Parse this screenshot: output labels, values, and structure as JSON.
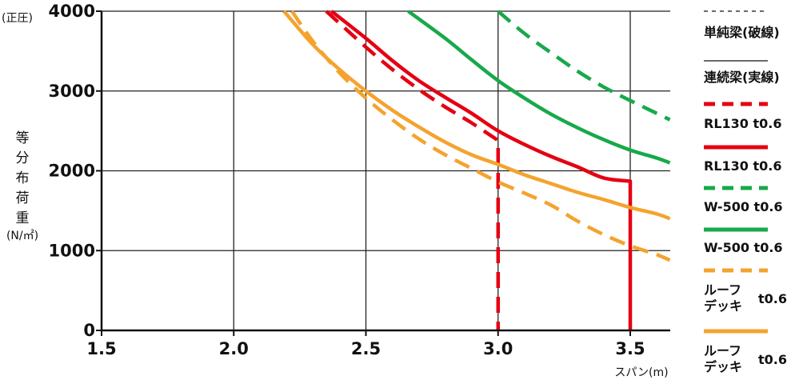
{
  "chart_data": {
    "type": "line",
    "xlabel": "スパン(m)",
    "ylabel_chars": [
      "等",
      "分",
      "布",
      "荷",
      "重"
    ],
    "yunit": "(N/㎡)",
    "ytop_note": "(正圧)",
    "xlim": [
      1.5,
      3.65
    ],
    "ylim": [
      0,
      4000
    ],
    "xticks": [
      1.5,
      2.0,
      2.5,
      3.0,
      3.5
    ],
    "xtick_labels": [
      "1.5",
      "2.0",
      "2.5",
      "3.0",
      "3.5"
    ],
    "yticks": [
      0,
      1000,
      2000,
      3000,
      4000
    ],
    "ytick_labels": [
      "0",
      "1000",
      "2000",
      "3000",
      "4000"
    ],
    "grid": true,
    "legend_placement": "right",
    "colors": {
      "red": "#e50012",
      "green": "#17a94a",
      "orange": "#f4a32f",
      "grid": "#222222"
    },
    "series": [
      {
        "id": "rl130-simple",
        "color": "#e50012",
        "dashed": true,
        "x": [
          2.35,
          2.5,
          2.6,
          2.7,
          2.8,
          2.9,
          3.0,
          3.0
        ],
        "y": [
          4000,
          3550,
          3270,
          3020,
          2800,
          2600,
          2380,
          0
        ]
      },
      {
        "id": "rl130-continuous",
        "color": "#e50012",
        "dashed": false,
        "x": [
          2.37,
          2.5,
          2.6,
          2.7,
          2.8,
          2.9,
          3.0,
          3.1,
          3.2,
          3.3,
          3.4,
          3.5,
          3.5
        ],
        "y": [
          4000,
          3660,
          3380,
          3130,
          2920,
          2720,
          2500,
          2330,
          2180,
          2050,
          1910,
          1870,
          0
        ]
      },
      {
        "id": "w500-simple",
        "color": "#17a94a",
        "dashed": true,
        "x": [
          3.0,
          3.1,
          3.2,
          3.3,
          3.4,
          3.5,
          3.6,
          3.65
        ],
        "y": [
          4000,
          3720,
          3480,
          3250,
          3050,
          2880,
          2720,
          2640
        ]
      },
      {
        "id": "w500-continuous",
        "color": "#17a94a",
        "dashed": false,
        "x": [
          2.66,
          2.8,
          2.9,
          3.0,
          3.1,
          3.2,
          3.3,
          3.4,
          3.5,
          3.6,
          3.65
        ],
        "y": [
          4000,
          3660,
          3390,
          3130,
          2910,
          2710,
          2540,
          2390,
          2260,
          2160,
          2100
        ]
      },
      {
        "id": "roofdeck-simple",
        "color": "#f4a32f",
        "dashed": true,
        "x": [
          2.22,
          2.3,
          2.4,
          2.5,
          2.6,
          2.7,
          2.8,
          2.9,
          3.0,
          3.1,
          3.2,
          3.3,
          3.4,
          3.5,
          3.6,
          3.65
        ],
        "y": [
          4000,
          3620,
          3230,
          2910,
          2640,
          2400,
          2200,
          2030,
          1860,
          1720,
          1570,
          1370,
          1200,
          1060,
          950,
          880
        ]
      },
      {
        "id": "roofdeck-continuous",
        "color": "#f4a32f",
        "dashed": false,
        "x": [
          2.19,
          2.3,
          2.4,
          2.5,
          2.6,
          2.7,
          2.8,
          2.9,
          3.0,
          3.1,
          3.2,
          3.3,
          3.4,
          3.5,
          3.6,
          3.65
        ],
        "y": [
          4000,
          3580,
          3270,
          3000,
          2760,
          2550,
          2360,
          2200,
          2080,
          1950,
          1840,
          1730,
          1640,
          1540,
          1460,
          1400
        ]
      }
    ]
  },
  "legend": {
    "entries": [
      {
        "style": "dashed",
        "color": "#111111",
        "label": "単純梁(破線)",
        "thin": true
      },
      {
        "style": "solid",
        "color": "#111111",
        "label": "連続梁(実線)",
        "thin": true
      },
      {
        "style": "dashed",
        "color": "#e50012",
        "label": "RL130 t0.6"
      },
      {
        "style": "solid",
        "color": "#e50012",
        "label": "RL130 t0.6"
      },
      {
        "style": "dashed",
        "color": "#17a94a",
        "label": "W-500 t0.6"
      },
      {
        "style": "solid",
        "color": "#17a94a",
        "label": "W-500 t0.6"
      },
      {
        "style": "dashed",
        "color": "#f4a32f",
        "label_line1": "ルーフ",
        "label_line2": "デッキ",
        "label_suffix": "t0.6"
      },
      {
        "style": "solid",
        "color": "#f4a32f",
        "label_line1": "ルーフ",
        "label_line2": "デッキ",
        "label_suffix": "t0.6"
      }
    ]
  }
}
